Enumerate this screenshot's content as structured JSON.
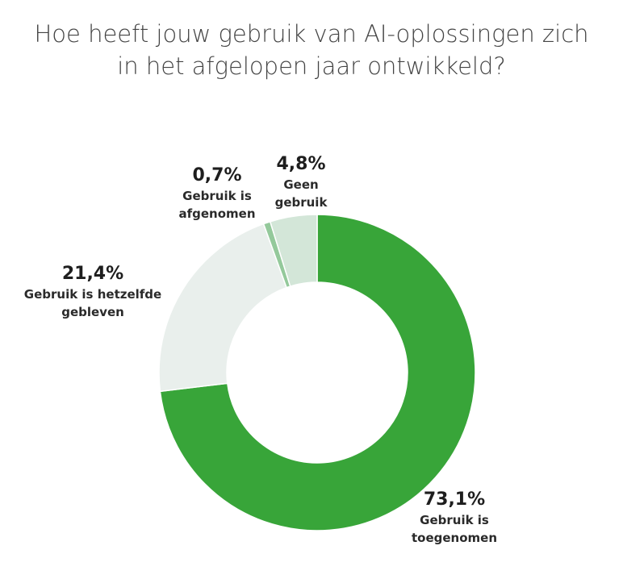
{
  "chart_data": {
    "type": "pie",
    "title": [
      "Hoe heeft jouw gebruik van AI-oplossingen zich",
      "in het afgelopen jaar ontwikkeld?"
    ],
    "slices": [
      {
        "label": [
          "Gebruik is",
          "toegenomen"
        ],
        "value_label": "73,1%",
        "value": 73.1,
        "color": "#38a539"
      },
      {
        "label": [
          "Gebruik is hetzelfde",
          "gebleven"
        ],
        "value_label": "21,4%",
        "value": 21.4,
        "color": "#e9efec"
      },
      {
        "label": [
          "Gebruik is",
          "afgenomen"
        ],
        "value_label": "0,7%",
        "value": 0.7,
        "color": "#94c99b"
      },
      {
        "label": [
          "Geen",
          "gebruik"
        ],
        "value_label": "4,8%",
        "value": 4.8,
        "color": "#d3e6d8"
      }
    ]
  }
}
